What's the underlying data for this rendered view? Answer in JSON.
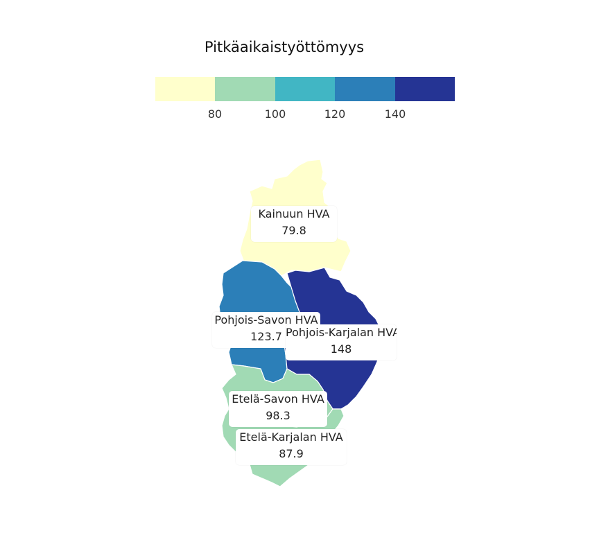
{
  "legend": {
    "title": "Pitkäaikaistyöttömyys",
    "colors": [
      "#ffffcc",
      "#a1dab4",
      "#41b6c4",
      "#2c7fb8",
      "#253494"
    ],
    "ticks": [
      "80",
      "100",
      "120",
      "140"
    ]
  },
  "regions": [
    {
      "name": "Kainuun HVA",
      "value": "79.8",
      "color": "#ffffcc"
    },
    {
      "name": "Pohjois-Savon HVA",
      "value": "123.7",
      "color": "#2c7fb8"
    },
    {
      "name": "Pohjois-Karjalan HVA",
      "value": "148",
      "color": "#253494"
    },
    {
      "name": "Etelä-Savon HVA",
      "value": "98.3",
      "color": "#a1dab4"
    },
    {
      "name": "Etelä-Karjalan HVA",
      "value": "87.9",
      "color": "#a1dab4"
    }
  ]
}
